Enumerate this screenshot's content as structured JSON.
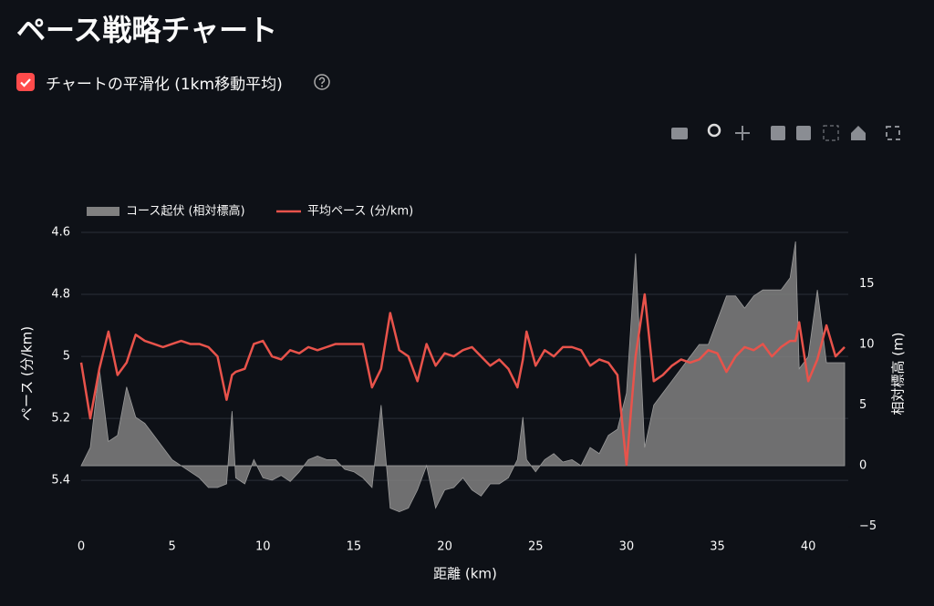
{
  "header": {
    "title": "ペース戦略チャート"
  },
  "checkbox": {
    "label": "チャートの平滑化 (1km移動平均)",
    "checked": true
  },
  "chart_data": {
    "type": "line",
    "x_label": "距離 (km)",
    "y_label": "ペース (分/km)",
    "y2_label": "相対標高 (m)",
    "x": [
      0,
      0.5,
      1,
      1.5,
      2,
      2.5,
      3,
      3.5,
      4,
      4.5,
      5,
      5.5,
      6,
      6.5,
      7,
      7.5,
      8,
      8.3,
      8.5,
      9,
      9.5,
      10,
      10.5,
      11,
      11.5,
      12,
      12.5,
      13,
      13.5,
      14,
      14.5,
      15,
      15.5,
      16,
      16.5,
      17,
      17.5,
      18,
      18.5,
      19,
      19.5,
      20,
      20.5,
      21,
      21.5,
      22,
      22.5,
      23,
      23.5,
      24,
      24.3,
      24.5,
      25,
      25.5,
      26,
      26.5,
      27,
      27.5,
      28,
      28.5,
      29,
      29.5,
      30,
      30.5,
      31,
      31.5,
      32,
      32.5,
      33,
      33.5,
      34,
      34.5,
      35,
      35.5,
      36,
      36.5,
      37,
      37.5,
      38,
      38.5,
      39,
      39.3,
      39.5,
      40,
      40.5,
      41,
      41.5,
      42
    ],
    "series": [
      {
        "name": "コース起伏 (相対標高)",
        "color": "#808080",
        "axis": "y2",
        "fill": "tozero",
        "values": [
          0,
          1.5,
          8,
          2,
          2.5,
          6.5,
          4,
          3.5,
          2.5,
          1.5,
          0.5,
          0,
          -0.5,
          -1,
          -1.8,
          -1.8,
          -1.5,
          4.5,
          -1,
          -1.5,
          0.5,
          -1,
          -1.2,
          -0.8,
          -1.3,
          -0.5,
          0.5,
          0.8,
          0.5,
          0.5,
          -0.3,
          -0.5,
          -1,
          -1.8,
          5,
          -3.5,
          -3.8,
          -3.5,
          -2,
          0,
          -3.5,
          -2,
          -1.8,
          -1,
          -2,
          -2.5,
          -1.5,
          -1.5,
          -1,
          0.5,
          4,
          0.5,
          -0.5,
          0.5,
          1,
          0.3,
          0.5,
          0,
          1.5,
          1,
          2.5,
          3,
          6,
          17.5,
          1.5,
          5,
          6,
          7,
          8,
          9,
          10,
          10,
          12,
          14,
          14,
          13,
          14,
          14.5,
          14.5,
          14.5,
          15.5,
          18.5,
          8,
          9,
          14.5,
          8.5,
          8.5,
          8.5
        ]
      },
      {
        "name": "平均ペース (分/km)",
        "color": "#e8534b",
        "values": [
          5.02,
          5.2,
          5.04,
          4.92,
          5.06,
          5.02,
          4.93,
          4.95,
          4.96,
          4.97,
          4.96,
          4.95,
          4.96,
          4.96,
          4.97,
          5.0,
          5.14,
          5.06,
          5.05,
          5.04,
          4.96,
          4.95,
          5.0,
          5.01,
          4.98,
          4.99,
          4.97,
          4.98,
          4.97,
          4.96,
          4.96,
          4.96,
          4.96,
          5.1,
          5.04,
          4.86,
          4.98,
          5.0,
          5.08,
          4.96,
          5.03,
          4.99,
          5.0,
          4.98,
          4.97,
          5.0,
          5.03,
          5.01,
          5.04,
          5.1,
          5.01,
          4.92,
          5.03,
          4.98,
          5.0,
          4.97,
          4.97,
          4.98,
          5.03,
          5.01,
          5.02,
          5.06,
          5.35,
          5.0,
          4.8,
          5.08,
          5.06,
          5.03,
          5.01,
          5.02,
          5.01,
          4.98,
          4.99,
          5.05,
          5.0,
          4.97,
          4.98,
          4.96,
          5.0,
          4.97,
          4.95,
          4.95,
          4.89,
          5.08,
          5.01,
          4.9,
          5.0,
          4.97
        ]
      }
    ],
    "xlim": [
      0,
      42.2
    ],
    "xticks": [
      0,
      5,
      10,
      15,
      20,
      25,
      30,
      35,
      40
    ],
    "ylim": [
      5.57,
      4.6
    ],
    "yticks": [
      4.6,
      4.8,
      5,
      5.2,
      5.4
    ],
    "y2lim": [
      -5.56,
      19.25
    ],
    "y2ticks": [
      {
        "value": -5,
        "label": "−5"
      },
      0,
      5,
      10,
      15
    ],
    "grid": true
  }
}
